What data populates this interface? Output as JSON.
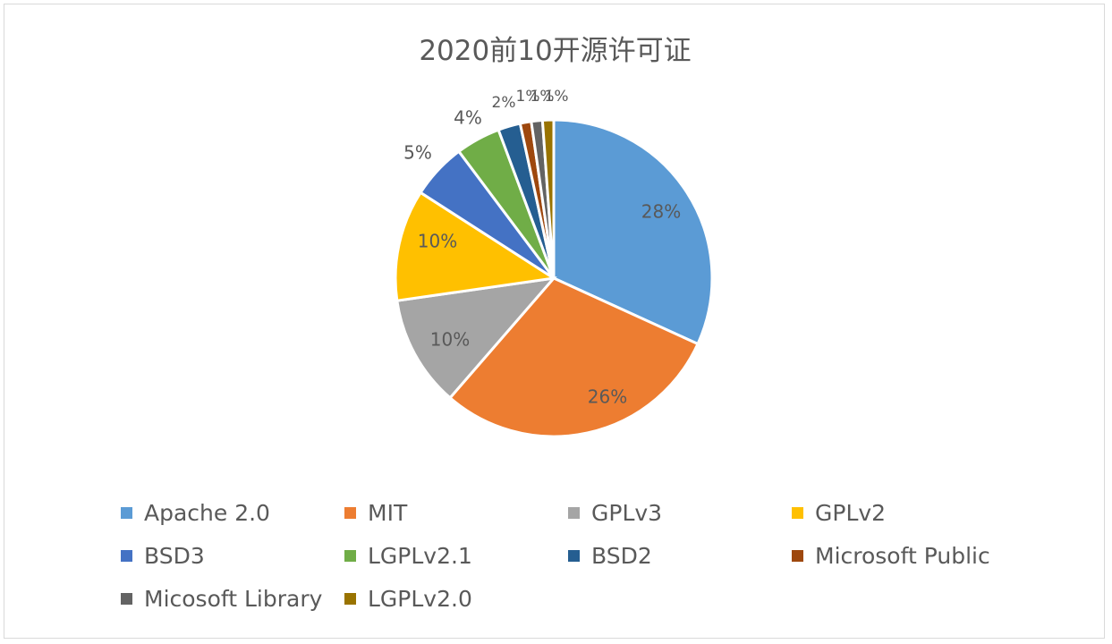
{
  "chart_data": {
    "type": "pie",
    "title": "2020前10开源许可证",
    "legend_position": "bottom",
    "slices": [
      {
        "name": "Apache 2.0",
        "value": 28,
        "label": "28%",
        "color": "#5b9bd5"
      },
      {
        "name": "MIT",
        "value": 26,
        "label": "26%",
        "color": "#ed7d31"
      },
      {
        "name": "GPLv3",
        "value": 10,
        "label": "10%",
        "color": "#a5a5a5"
      },
      {
        "name": "GPLv2",
        "value": 10,
        "label": "10%",
        "color": "#ffc000"
      },
      {
        "name": "BSD3",
        "value": 5,
        "label": "5%",
        "color": "#4472c4"
      },
      {
        "name": "LGPLv2.1",
        "value": 4,
        "label": "4%",
        "color": "#70ad47"
      },
      {
        "name": "BSD2",
        "value": 2,
        "label": "2%",
        "color": "#255e91"
      },
      {
        "name": "Microsoft Public",
        "value": 1,
        "label": "1%",
        "color": "#9e480e"
      },
      {
        "name": "Micosoft Library",
        "value": 1,
        "label": "1%",
        "color": "#636363"
      },
      {
        "name": "LGPLv2.0",
        "value": 1,
        "label": "1%",
        "color": "#997300"
      }
    ]
  }
}
